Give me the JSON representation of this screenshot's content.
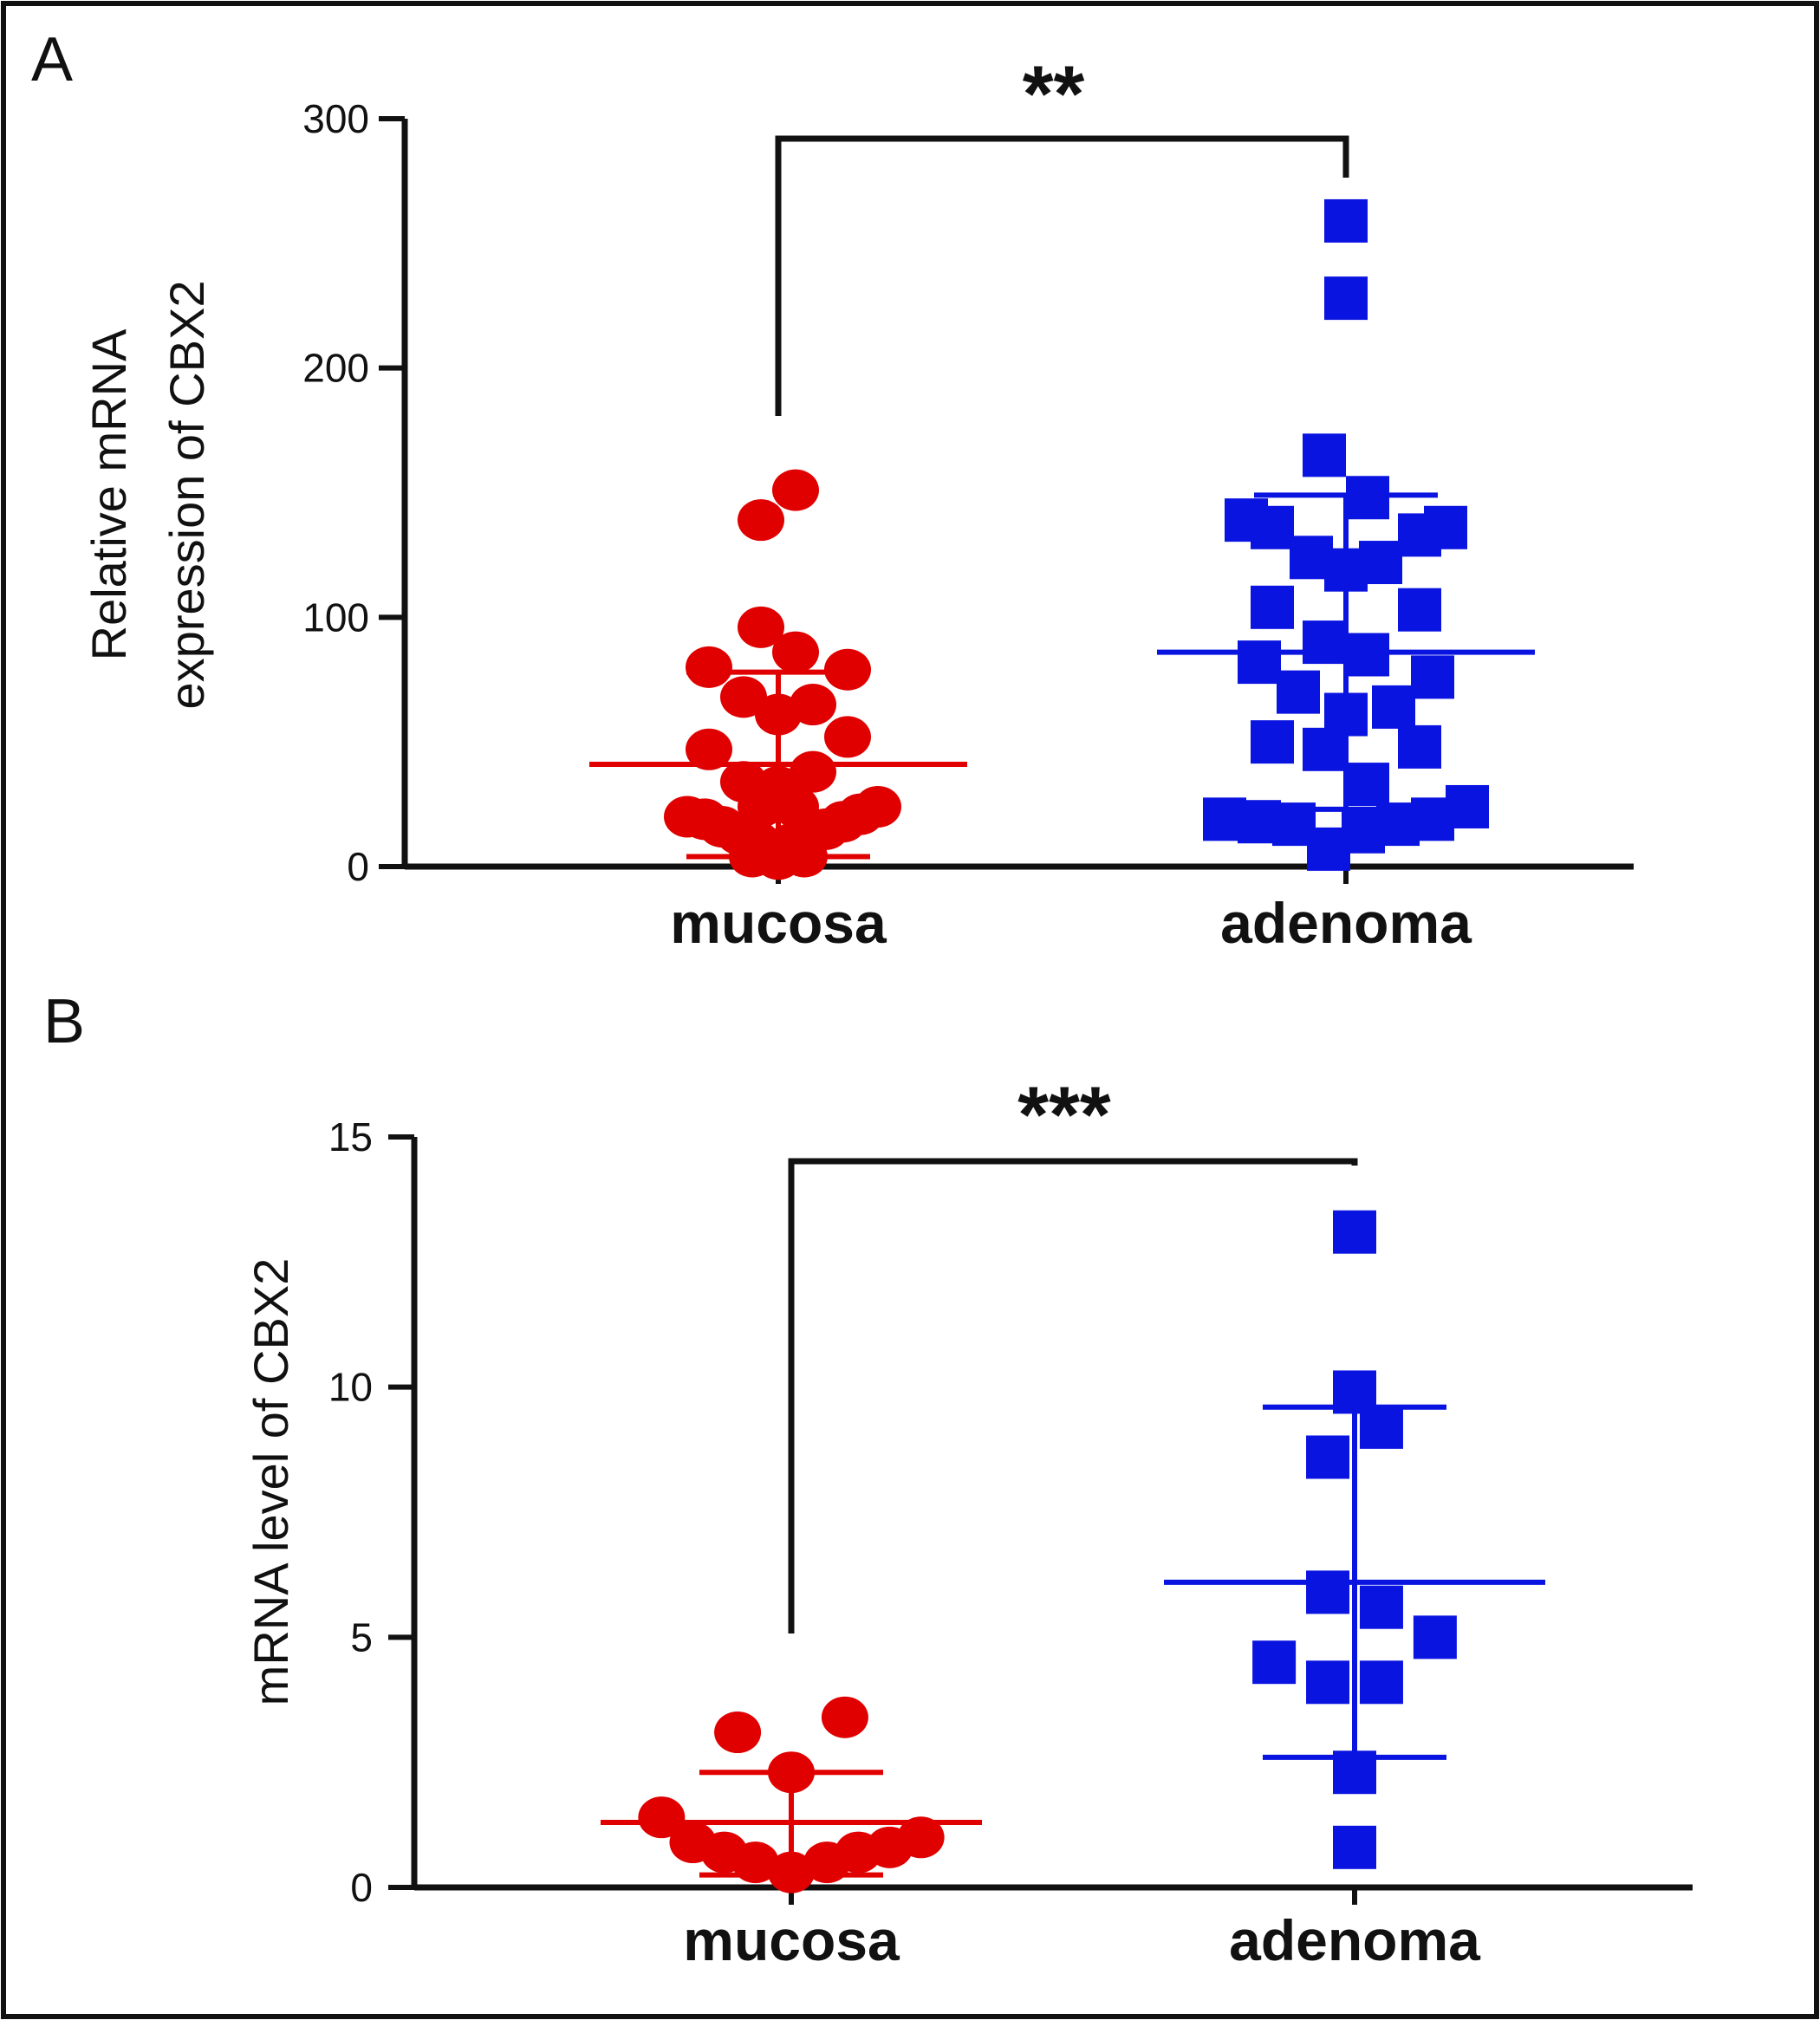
{
  "panels": [
    {
      "label": "A"
    },
    {
      "label": "B"
    }
  ],
  "colors": {
    "mucosa": "#e00000",
    "adenoma": "#0a14e0",
    "axis": "#111111",
    "frame": "#111111"
  },
  "chart_data": [
    {
      "type": "scatter",
      "panel": "A",
      "ylabel": [
        "Relative mRNA",
        "expression of CBX2"
      ],
      "xlabel": "",
      "ylim": [
        0,
        300
      ],
      "yticks": [
        0,
        100,
        200,
        300
      ],
      "categories": [
        "mucosa",
        "adenoma"
      ],
      "grid": false,
      "significance": {
        "label": "**",
        "between": [
          "mucosa",
          "adenoma"
        ]
      },
      "series": [
        {
          "category": "mucosa",
          "marker": "circle",
          "mean": 41,
          "sd_upper": 78,
          "sd_lower": 4,
          "points": [
            {
              "x": 0.04,
              "y": 151
            },
            {
              "x": -0.04,
              "y": 139
            },
            {
              "x": -0.04,
              "y": 96
            },
            {
              "x": 0.04,
              "y": 86
            },
            {
              "x": -0.16,
              "y": 80
            },
            {
              "x": 0.16,
              "y": 79
            },
            {
              "x": -0.08,
              "y": 68
            },
            {
              "x": 0.0,
              "y": 61
            },
            {
              "x": 0.08,
              "y": 65
            },
            {
              "x": -0.16,
              "y": 47
            },
            {
              "x": 0.16,
              "y": 52
            },
            {
              "x": -0.08,
              "y": 34
            },
            {
              "x": 0.0,
              "y": 32
            },
            {
              "x": 0.08,
              "y": 38
            },
            {
              "x": -0.04,
              "y": 24
            },
            {
              "x": 0.04,
              "y": 24
            },
            {
              "x": -0.21,
              "y": 20
            },
            {
              "x": -0.17,
              "y": 19
            },
            {
              "x": -0.13,
              "y": 16
            },
            {
              "x": -0.09,
              "y": 13
            },
            {
              "x": -0.05,
              "y": 10
            },
            {
              "x": -0.01,
              "y": 7
            },
            {
              "x": 0.03,
              "y": 9
            },
            {
              "x": 0.07,
              "y": 12
            },
            {
              "x": 0.11,
              "y": 15
            },
            {
              "x": 0.15,
              "y": 18
            },
            {
              "x": 0.19,
              "y": 21
            },
            {
              "x": 0.23,
              "y": 24
            },
            {
              "x": -0.06,
              "y": 4
            },
            {
              "x": 0.0,
              "y": 3
            },
            {
              "x": 0.06,
              "y": 4
            },
            {
              "x": -0.02,
              "y": 5
            }
          ]
        },
        {
          "category": "adenoma",
          "marker": "square",
          "mean": 86,
          "sd_upper": 149,
          "sd_lower": 23,
          "points": [
            {
              "x": 0.0,
              "y": 259
            },
            {
              "x": 0.0,
              "y": 228
            },
            {
              "x": -0.05,
              "y": 165
            },
            {
              "x": 0.05,
              "y": 148
            },
            {
              "x": -0.23,
              "y": 139
            },
            {
              "x": -0.17,
              "y": 136
            },
            {
              "x": 0.17,
              "y": 133
            },
            {
              "x": 0.23,
              "y": 136
            },
            {
              "x": -0.08,
              "y": 124
            },
            {
              "x": 0.0,
              "y": 119
            },
            {
              "x": 0.08,
              "y": 122
            },
            {
              "x": -0.17,
              "y": 104
            },
            {
              "x": 0.17,
              "y": 103
            },
            {
              "x": -0.05,
              "y": 90
            },
            {
              "x": 0.05,
              "y": 85
            },
            {
              "x": -0.2,
              "y": 82
            },
            {
              "x": 0.2,
              "y": 76
            },
            {
              "x": -0.11,
              "y": 70
            },
            {
              "x": 0.11,
              "y": 64
            },
            {
              "x": 0.0,
              "y": 61
            },
            {
              "x": -0.17,
              "y": 50
            },
            {
              "x": -0.05,
              "y": 47
            },
            {
              "x": 0.17,
              "y": 48
            },
            {
              "x": 0.05,
              "y": 33
            },
            {
              "x": -0.28,
              "y": 19
            },
            {
              "x": -0.2,
              "y": 18
            },
            {
              "x": -0.12,
              "y": 17
            },
            {
              "x": -0.04,
              "y": 7
            },
            {
              "x": 0.04,
              "y": 14
            },
            {
              "x": 0.12,
              "y": 17
            },
            {
              "x": 0.2,
              "y": 19
            },
            {
              "x": 0.28,
              "y": 24
            }
          ]
        }
      ]
    },
    {
      "type": "scatter",
      "panel": "B",
      "ylabel": [
        "mRNA level of CBX2"
      ],
      "xlabel": "",
      "ylim": [
        0,
        15
      ],
      "yticks": [
        0,
        5,
        10,
        15
      ],
      "categories": [
        "mucosa",
        "adenoma"
      ],
      "grid": false,
      "significance": {
        "label": "***",
        "between": [
          "mucosa",
          "adenoma"
        ]
      },
      "series": [
        {
          "category": "mucosa",
          "marker": "circle",
          "mean": 1.3,
          "sd_upper": 2.3,
          "sd_lower": 0.25,
          "points": [
            {
              "x": -0.12,
              "y": 3.1
            },
            {
              "x": 0.12,
              "y": 3.4
            },
            {
              "x": 0.0,
              "y": 2.3
            },
            {
              "x": -0.29,
              "y": 1.4
            },
            {
              "x": -0.22,
              "y": 0.9
            },
            {
              "x": -0.15,
              "y": 0.7
            },
            {
              "x": -0.08,
              "y": 0.5
            },
            {
              "x": 0.0,
              "y": 0.3
            },
            {
              "x": 0.08,
              "y": 0.5
            },
            {
              "x": 0.15,
              "y": 0.7
            },
            {
              "x": 0.22,
              "y": 0.8
            },
            {
              "x": 0.29,
              "y": 1.0
            }
          ]
        },
        {
          "category": "adenoma",
          "marker": "square",
          "mean": 6.1,
          "sd_upper": 9.6,
          "sd_lower": 2.6,
          "points": [
            {
              "x": 0.0,
              "y": 13.1
            },
            {
              "x": 0.0,
              "y": 9.9
            },
            {
              "x": 0.06,
              "y": 9.2
            },
            {
              "x": -0.06,
              "y": 8.6
            },
            {
              "x": -0.06,
              "y": 5.9
            },
            {
              "x": 0.06,
              "y": 5.6
            },
            {
              "x": 0.18,
              "y": 5.0
            },
            {
              "x": -0.18,
              "y": 4.5
            },
            {
              "x": -0.06,
              "y": 4.1
            },
            {
              "x": 0.06,
              "y": 4.1
            },
            {
              "x": 0.0,
              "y": 2.3
            },
            {
              "x": 0.0,
              "y": 0.8
            }
          ]
        }
      ]
    }
  ]
}
